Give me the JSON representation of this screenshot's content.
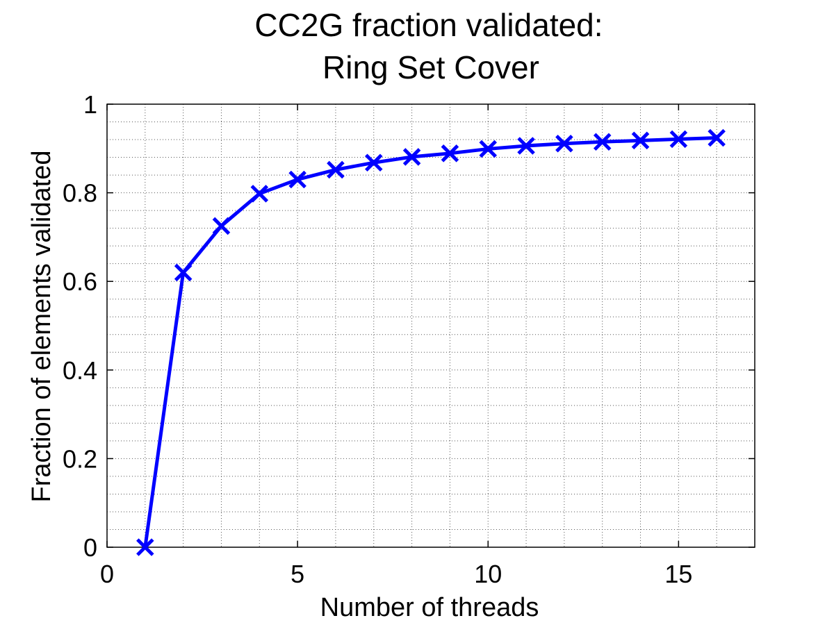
{
  "chart_data": {
    "type": "line",
    "title": [
      "CC2G fraction validated:",
      "Ring Set Cover"
    ],
    "xlabel": "Number of threads",
    "ylabel": "Fraction of elements validated",
    "xlim": [
      0,
      17
    ],
    "ylim": [
      0,
      1
    ],
    "xticks": [
      "0",
      "5",
      "10",
      "15"
    ],
    "yticks": [
      "0",
      "0.2",
      "0.4",
      "0.6",
      "0.8",
      "1"
    ],
    "grid": true,
    "minor_grid": true,
    "series": [
      {
        "color": "#0000ff",
        "marker": "x",
        "x": [
          1,
          2,
          3,
          4,
          5,
          6,
          7,
          8,
          9,
          10,
          11,
          12,
          13,
          14,
          15,
          16
        ],
        "y": [
          0.0,
          0.62,
          0.725,
          0.798,
          0.83,
          0.852,
          0.868,
          0.881,
          0.889,
          0.899,
          0.906,
          0.911,
          0.915,
          0.918,
          0.921,
          0.924
        ]
      }
    ]
  }
}
